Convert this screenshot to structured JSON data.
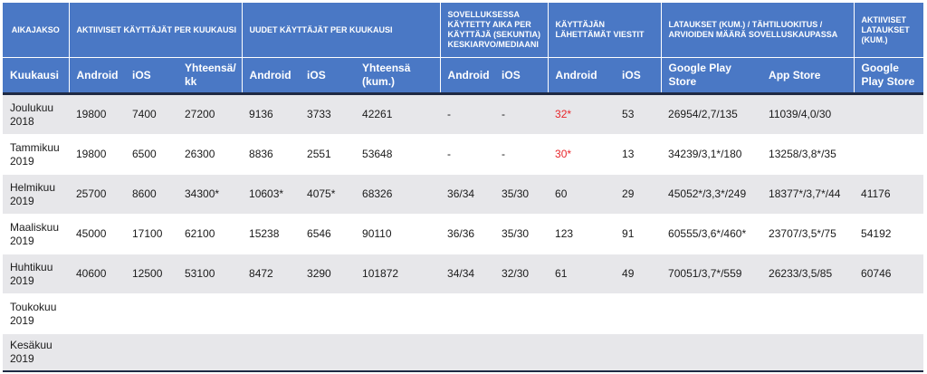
{
  "groups": [
    {
      "label": "AIKAJAKSO"
    },
    {
      "label": "AKTIIVISET KÄYTTÄJÄT PER KUUKAUSI"
    },
    {
      "label": "UUDET KÄYTTÄJÄT PER KUUKAUSI"
    },
    {
      "label": "SOVELLUKSESSA KÄYTETTY AIKA PER KÄYTTÄJÄ (SEKUNTIA) KESKIARVO/MEDIAANI"
    },
    {
      "label": "KÄYTTÄJÄN LÄHETTÄMÄT VIESTIT"
    },
    {
      "label": "LATAUKSET (KUM.) / TÄHTILUOKITUS / ARVIOIDEN MÄÄRÄ SOVELLUSKAUPASSA"
    },
    {
      "label": "AKTIIVISET LATAUKSET (KUM.)"
    }
  ],
  "columns": [
    "Kuukausi",
    "Android",
    "iOS",
    "Yhteensä/ kk",
    "Android",
    "iOS",
    "Yhteensä (kum.)",
    "Android",
    "iOS",
    "Android",
    "iOS",
    "Google Play Store",
    "App Store",
    "Google Play Store"
  ],
  "rows": [
    {
      "period": "Joulukuu 2018",
      "cells": [
        "19800",
        "7400",
        "27200",
        "9136",
        "3733",
        "42261",
        "-",
        "-",
        "32*",
        "53",
        "26954/2,7/135",
        "11039/4,0/30",
        ""
      ]
    },
    {
      "period": "Tammikuu 2019",
      "cells": [
        "19800",
        "6500",
        "26300",
        "8836",
        "2551",
        "53648",
        "-",
        "-",
        "30*",
        "13",
        "34239/3,1*/180",
        "13258/3,8*/35",
        ""
      ]
    },
    {
      "period": "Helmikuu 2019",
      "cells": [
        "25700",
        "8600",
        "34300*",
        "10603*",
        "4075*",
        "68326",
        "36/34",
        "35/30",
        "60",
        "29",
        "45052*/3,3*/249",
        "18377*/3,7*/44",
        "41176"
      ]
    },
    {
      "period": "Maaliskuu 2019",
      "cells": [
        "45000",
        "17100",
        "62100",
        "15238",
        "6546",
        "90110",
        "36/36",
        "35/30",
        "123",
        "91",
        "60555/3,6*/460*",
        "23707/3,5*/75",
        "54192"
      ]
    },
    {
      "period": "Huhtikuu 2019",
      "cells": [
        "40600",
        "12500",
        "53100",
        "8472",
        "3290",
        "101872",
        "34/34",
        "32/30",
        "61",
        "49",
        "70051/3,7*/559",
        "26233/3,5/85",
        "60746"
      ]
    },
    {
      "period": "Toukokuu 2019",
      "cells": [
        "",
        "",
        "",
        "",
        "",
        "",
        "",
        "",
        "",
        "",
        "",
        "",
        ""
      ]
    },
    {
      "period": "Kesäkuu 2019",
      "cells": [
        "",
        "",
        "",
        "",
        "",
        "",
        "",
        "",
        "",
        "",
        "",
        "",
        ""
      ]
    }
  ],
  "colors": {
    "header": "#4a78c5",
    "stripe": "#e7e7ea",
    "highlight": "#e8262b"
  }
}
